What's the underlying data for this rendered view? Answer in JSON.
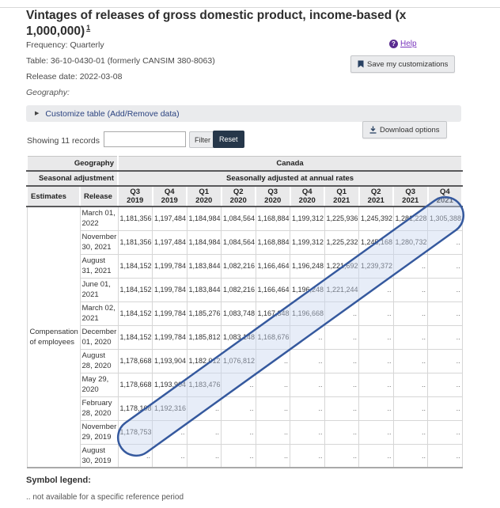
{
  "page": {
    "title": "Vintages of releases of gross domestic product, income-based (x 1,000,000)",
    "title_footnote": "1",
    "frequency": "Frequency: Quarterly",
    "table_ref": "Table: 36-10-0430-01 (formerly CANSIM 380-8063)",
    "release_date": "Release date: 2022-03-08",
    "geography_label": "Geography:",
    "help_label": "Help",
    "help_icon_glyph": "?",
    "save_button_label": "Save my customizations",
    "customize_label": "Customize table (Add/Remove data)",
    "download_button_label": "Download options",
    "showing_records": "Showing 11 records",
    "filter_button_label": "Filter",
    "reset_button_label": "Reset",
    "filter_placeholder": ""
  },
  "table": {
    "geography_header": "Geography",
    "geography_value": "Canada",
    "seasonal_header": "Seasonal adjustment",
    "seasonal_value": "Seasonally adjusted at annual rates",
    "estimates_header": "Estimates",
    "release_header": "Release",
    "quarters": [
      "Q3 2019",
      "Q4 2019",
      "Q1 2020",
      "Q2 2020",
      "Q3 2020",
      "Q4 2020",
      "Q1 2021",
      "Q2 2021",
      "Q3 2021",
      "Q4 2021"
    ],
    "estimate_name": "Compensation of employees",
    "na_symbol": "..",
    "rows": [
      {
        "release": "March 01, 2022",
        "values": [
          "1,181,356",
          "1,197,484",
          "1,184,984",
          "1,084,564",
          "1,168,884",
          "1,199,312",
          "1,225,936",
          "1,245,392",
          "1,281,228",
          "1,305,388"
        ]
      },
      {
        "release": "November 30, 2021",
        "values": [
          "1,181,356",
          "1,197,484",
          "1,184,984",
          "1,084,564",
          "1,168,884",
          "1,199,312",
          "1,225,232",
          "1,245,168",
          "1,280,732",
          ".."
        ]
      },
      {
        "release": "August 31, 2021",
        "values": [
          "1,184,152",
          "1,199,784",
          "1,183,844",
          "1,082,216",
          "1,166,464",
          "1,196,248",
          "1,221,692",
          "1,239,372",
          "..",
          ".."
        ]
      },
      {
        "release": "June 01, 2021",
        "values": [
          "1,184,152",
          "1,199,784",
          "1,183,844",
          "1,082,216",
          "1,166,464",
          "1,196,248",
          "1,221,244",
          "..",
          "..",
          ".."
        ]
      },
      {
        "release": "March 02, 2021",
        "values": [
          "1,184,152",
          "1,199,784",
          "1,185,276",
          "1,083,748",
          "1,167,348",
          "1,196,668",
          "..",
          "..",
          "..",
          ".."
        ]
      },
      {
        "release": "December 01, 2020",
        "values": [
          "1,184,152",
          "1,199,784",
          "1,185,812",
          "1,083,148",
          "1,168,676",
          "..",
          "..",
          "..",
          "..",
          ".."
        ]
      },
      {
        "release": "August 28, 2020",
        "values": [
          "1,178,668",
          "1,193,904",
          "1,182,012",
          "1,076,812",
          "..",
          "..",
          "..",
          "..",
          "..",
          ".."
        ]
      },
      {
        "release": "May 29, 2020",
        "values": [
          "1,178,668",
          "1,193,904",
          "1,183,476",
          "..",
          "..",
          "..",
          "..",
          "..",
          "..",
          ".."
        ]
      },
      {
        "release": "February 28, 2020",
        "values": [
          "1,178,108",
          "1,192,316",
          "..",
          "..",
          "..",
          "..",
          "..",
          "..",
          "..",
          ".."
        ]
      },
      {
        "release": "November 29, 2019",
        "values": [
          "1,178,753",
          "..",
          "..",
          "..",
          "..",
          "..",
          "..",
          "..",
          "..",
          ".."
        ]
      },
      {
        "release": "August 30, 2019",
        "values": [
          "..",
          "..",
          "..",
          "..",
          "..",
          "..",
          "..",
          "..",
          "..",
          ".."
        ]
      }
    ]
  },
  "legend": {
    "title": "Symbol legend:",
    "items": [
      ".. not available for a specific reference period"
    ]
  },
  "annotation": {
    "highlight_fill": "#c9d6ef",
    "highlight_fill_opacity": "0.45",
    "highlight_stroke": "#35599e",
    "highlight_stroke_width": "2.5"
  }
}
